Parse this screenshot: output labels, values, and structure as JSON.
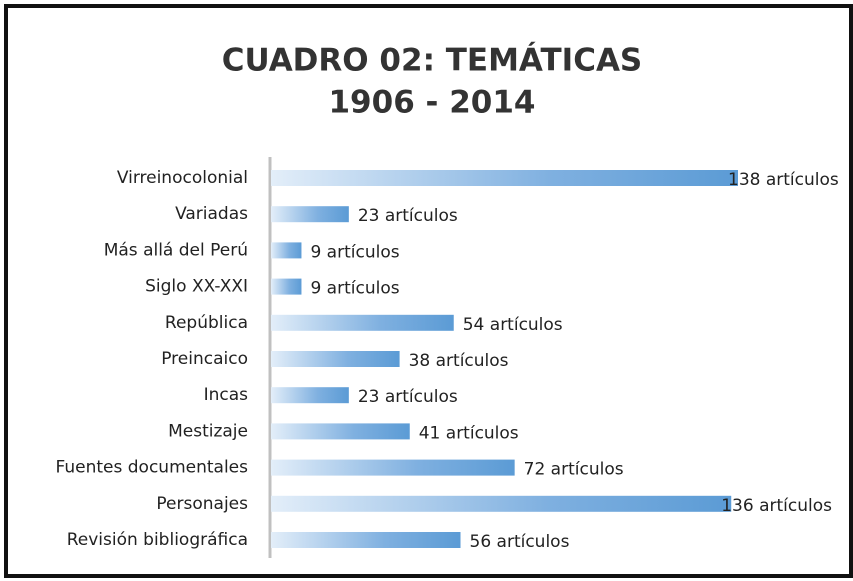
{
  "chart_data": {
    "type": "barh",
    "title": "CUADRO 02: TEMÁTICAS",
    "subtitle": "1906 - 2014",
    "categories": [
      "Virreinocolonial",
      "Variadas",
      "Más allá del Perú",
      "Siglo XX-XXI",
      "República",
      "Preincaico",
      "Incas",
      "Mestizaje",
      "Fuentes documentales",
      "Personajes",
      "Revisión bibliográfica"
    ],
    "values": [
      138,
      23,
      9,
      9,
      54,
      38,
      23,
      41,
      72,
      136,
      56
    ],
    "value_labels": [
      "138 artículos",
      "23 artículos",
      "9 artículos",
      "9 artículos",
      "54 artículos",
      "38 artículos",
      "23 artículos",
      "41 artículos",
      "72 artículos",
      "136 artículos",
      "56 artículos"
    ],
    "color": "#5b9bd5"
  }
}
